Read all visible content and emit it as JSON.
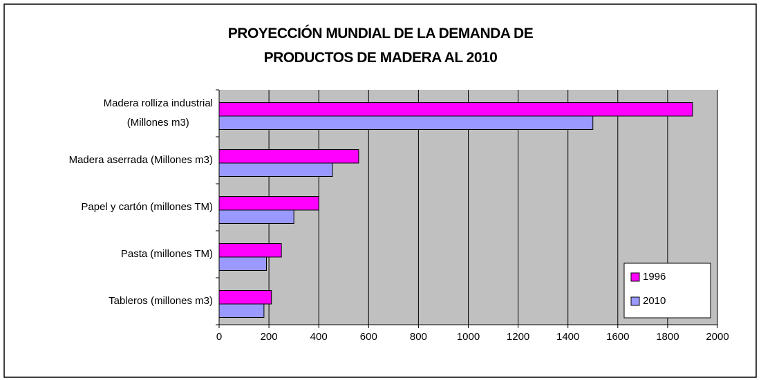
{
  "chart_data": {
    "type": "barh",
    "title": "PROYECCIÓN MUNDIAL DE LA DEMANDA DE\nPRODUCTOS DE MADERA AL 2010",
    "categories": [
      "Madera rolliza industrial\n(Millones m3)",
      "Madera aserrada (Millones m3)",
      "Papel y cartón (millones TM)",
      "Pasta (millones TM)",
      "Tableros (millones m3)"
    ],
    "series": [
      {
        "name": "1996",
        "color": "#ff00ff",
        "values": [
          1900,
          560,
          400,
          250,
          210
        ]
      },
      {
        "name": "2010",
        "color": "#9999ff",
        "values": [
          1500,
          455,
          300,
          190,
          180
        ]
      }
    ],
    "xlim": [
      0,
      2000
    ],
    "xticks": [
      0,
      200,
      400,
      600,
      800,
      1000,
      1200,
      1400,
      1600,
      1800,
      2000
    ],
    "grid": true,
    "legend": "lower right",
    "plot_background": "#c0c0c0"
  }
}
